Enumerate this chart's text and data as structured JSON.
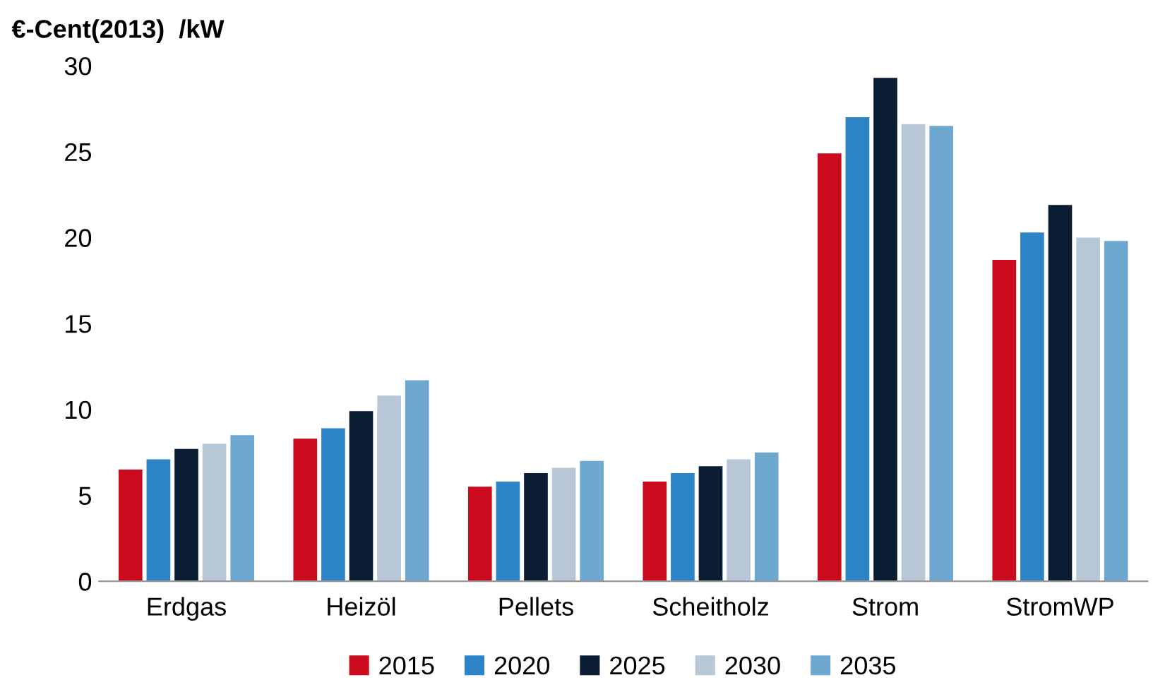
{
  "chart_data": {
    "type": "bar",
    "ylabel": "€-Cent(2013)  /kW",
    "categories": [
      "Erdgas",
      "Heizöl",
      "Pellets",
      "Scheitholz",
      "Strom",
      "StromWP"
    ],
    "series": [
      {
        "name": "2015",
        "color": "#cc0a1e",
        "values": [
          6.5,
          8.3,
          5.5,
          5.8,
          24.9,
          18.7
        ]
      },
      {
        "name": "2020",
        "color": "#2c84c6",
        "values": [
          7.1,
          8.9,
          5.8,
          6.3,
          27.0,
          20.3
        ]
      },
      {
        "name": "2025",
        "color": "#0b1d33",
        "values": [
          7.7,
          9.9,
          6.3,
          6.7,
          29.3,
          21.9
        ]
      },
      {
        "name": "2030",
        "color": "#b7c7d5",
        "values": [
          8.0,
          10.8,
          6.6,
          7.1,
          26.6,
          20.0
        ]
      },
      {
        "name": "2035",
        "color": "#6ea7cf",
        "values": [
          8.5,
          11.7,
          7.0,
          7.5,
          26.5,
          19.8
        ]
      }
    ],
    "ylim": [
      0,
      30
    ],
    "yticks": [
      0,
      5,
      10,
      15,
      20,
      25,
      30
    ],
    "grid": false,
    "legend": "bottom"
  }
}
